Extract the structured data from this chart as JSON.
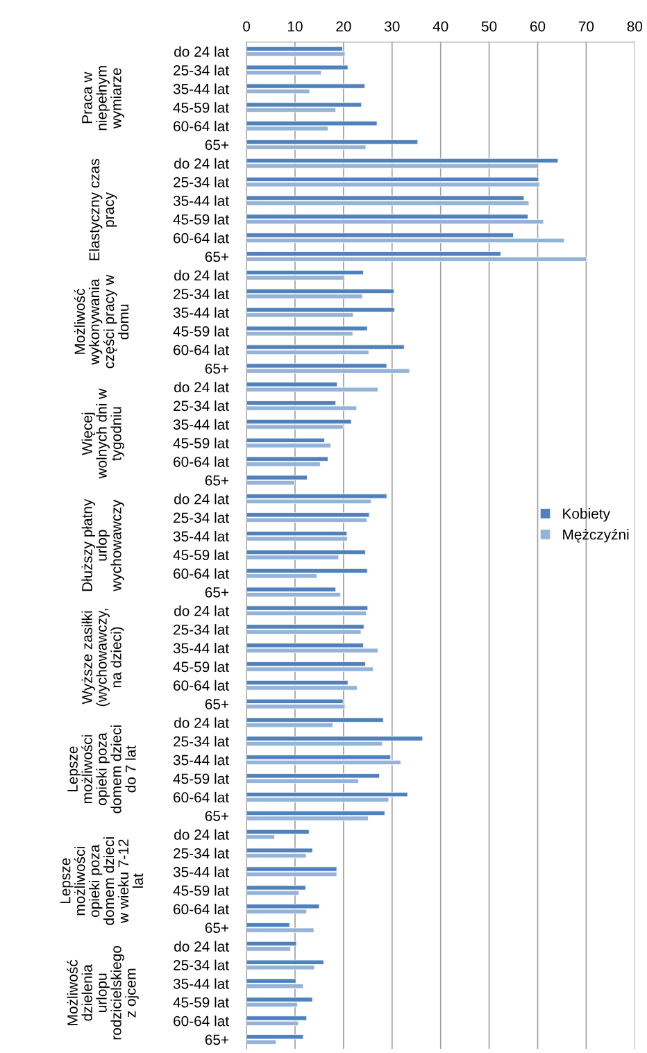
{
  "chart_data": {
    "type": "bar",
    "orientation": "horizontal",
    "categories": [
      "do 24 lat",
      "25-34 lat",
      "35-44 lat",
      "45-59 lat",
      "60-64 lat",
      "65+",
      "do 24 lat",
      "25-34 lat",
      "35-44 lat",
      "45-59 lat",
      "60-64 lat",
      "65+",
      "do 24 lat",
      "25-34 lat",
      "35-44 lat",
      "45-59 lat",
      "60-64 lat",
      "65+",
      "do 24 lat",
      "25-34 lat",
      "35-44 lat",
      "45-59 lat",
      "60-64 lat",
      "65+",
      "do 24 lat",
      "25-34 lat",
      "35-44 lat",
      "45-59 lat",
      "60-64 lat",
      "65+",
      "do 24 lat",
      "25-34 lat",
      "35-44 lat",
      "45-59 lat",
      "60-64 lat",
      "65+",
      "do 24 lat",
      "25-34 lat",
      "35-44 lat",
      "45-59 lat",
      "60-64 lat",
      "65+",
      "do 24 lat",
      "25-34 lat",
      "35-44 lat",
      "45-59 lat",
      "60-64 lat",
      "65+",
      "do 24 lat",
      "25-34 lat",
      "35-44 lat",
      "45-59 lat",
      "60-64 lat",
      "65+"
    ],
    "annotations": [
      "Praca w\nniepełnym\nwymiarze",
      "Elastyczny czas\npracy",
      "Możliwość\nwykonywania\nczęści pracy w\ndomu",
      "Więcej\nwolnych dni w\ntygodniu",
      "Dłuższy płatny\nurlop\nwychowawczy",
      "Wyższe zasiłki\n(wychowawczy,\nna dzieci)",
      "Lepsze\nmożliwości\nopieki poza\ndomem dzieci\ndo 7 lat",
      "Lepsze\nmożliwości\nopieki poza\ndomem dzieci\nw wieku 7-12\nlat",
      "Możliwość\ndzielenia\nurlopu\nrodzicielskiego\nz ojcem"
    ],
    "series": [
      {
        "name": "Kobiety",
        "color": "#4f81bd",
        "values": [
          19.8,
          20.9,
          24.4,
          23.7,
          26.9,
          35.3,
          64.2,
          60.2,
          57.2,
          58.0,
          55.0,
          52.4,
          24.1,
          30.4,
          30.5,
          24.9,
          32.5,
          28.9,
          18.7,
          18.4,
          21.6,
          16.1,
          16.8,
          12.5,
          28.9,
          25.3,
          20.7,
          24.5,
          24.9,
          18.4,
          25.0,
          24.2,
          24.1,
          24.5,
          20.9,
          19.9,
          28.2,
          36.3,
          29.7,
          27.4,
          33.2,
          28.5,
          12.9,
          13.6,
          18.6,
          12.2,
          15.0,
          8.9,
          10.3,
          15.9,
          10.2,
          13.6,
          12.4,
          11.7
        ]
      },
      {
        "name": "Mężczyźni",
        "color": "#95b3d7",
        "values": [
          20.3,
          15.4,
          13.0,
          18.4,
          16.8,
          24.6,
          60.2,
          60.4,
          58.2,
          61.2,
          65.5,
          70.1,
          20.2,
          23.9,
          22.0,
          21.9,
          25.2,
          33.6,
          27.1,
          22.7,
          19.9,
          17.4,
          15.2,
          9.9,
          25.7,
          24.8,
          20.8,
          19.0,
          14.5,
          19.4,
          24.7,
          23.6,
          27.1,
          26.1,
          22.8,
          20.3,
          17.8,
          28.0,
          31.8,
          23.1,
          29.3,
          25.1,
          5.8,
          12.3,
          18.6,
          10.8,
          12.4,
          13.9,
          9.1,
          14.0,
          11.7,
          10.5,
          10.7,
          6.1
        ]
      }
    ],
    "xlim": [
      0,
      80
    ],
    "xticks": [
      0,
      10,
      20,
      30,
      40,
      50,
      60,
      70,
      80
    ],
    "grid": "x",
    "legend": "right"
  }
}
